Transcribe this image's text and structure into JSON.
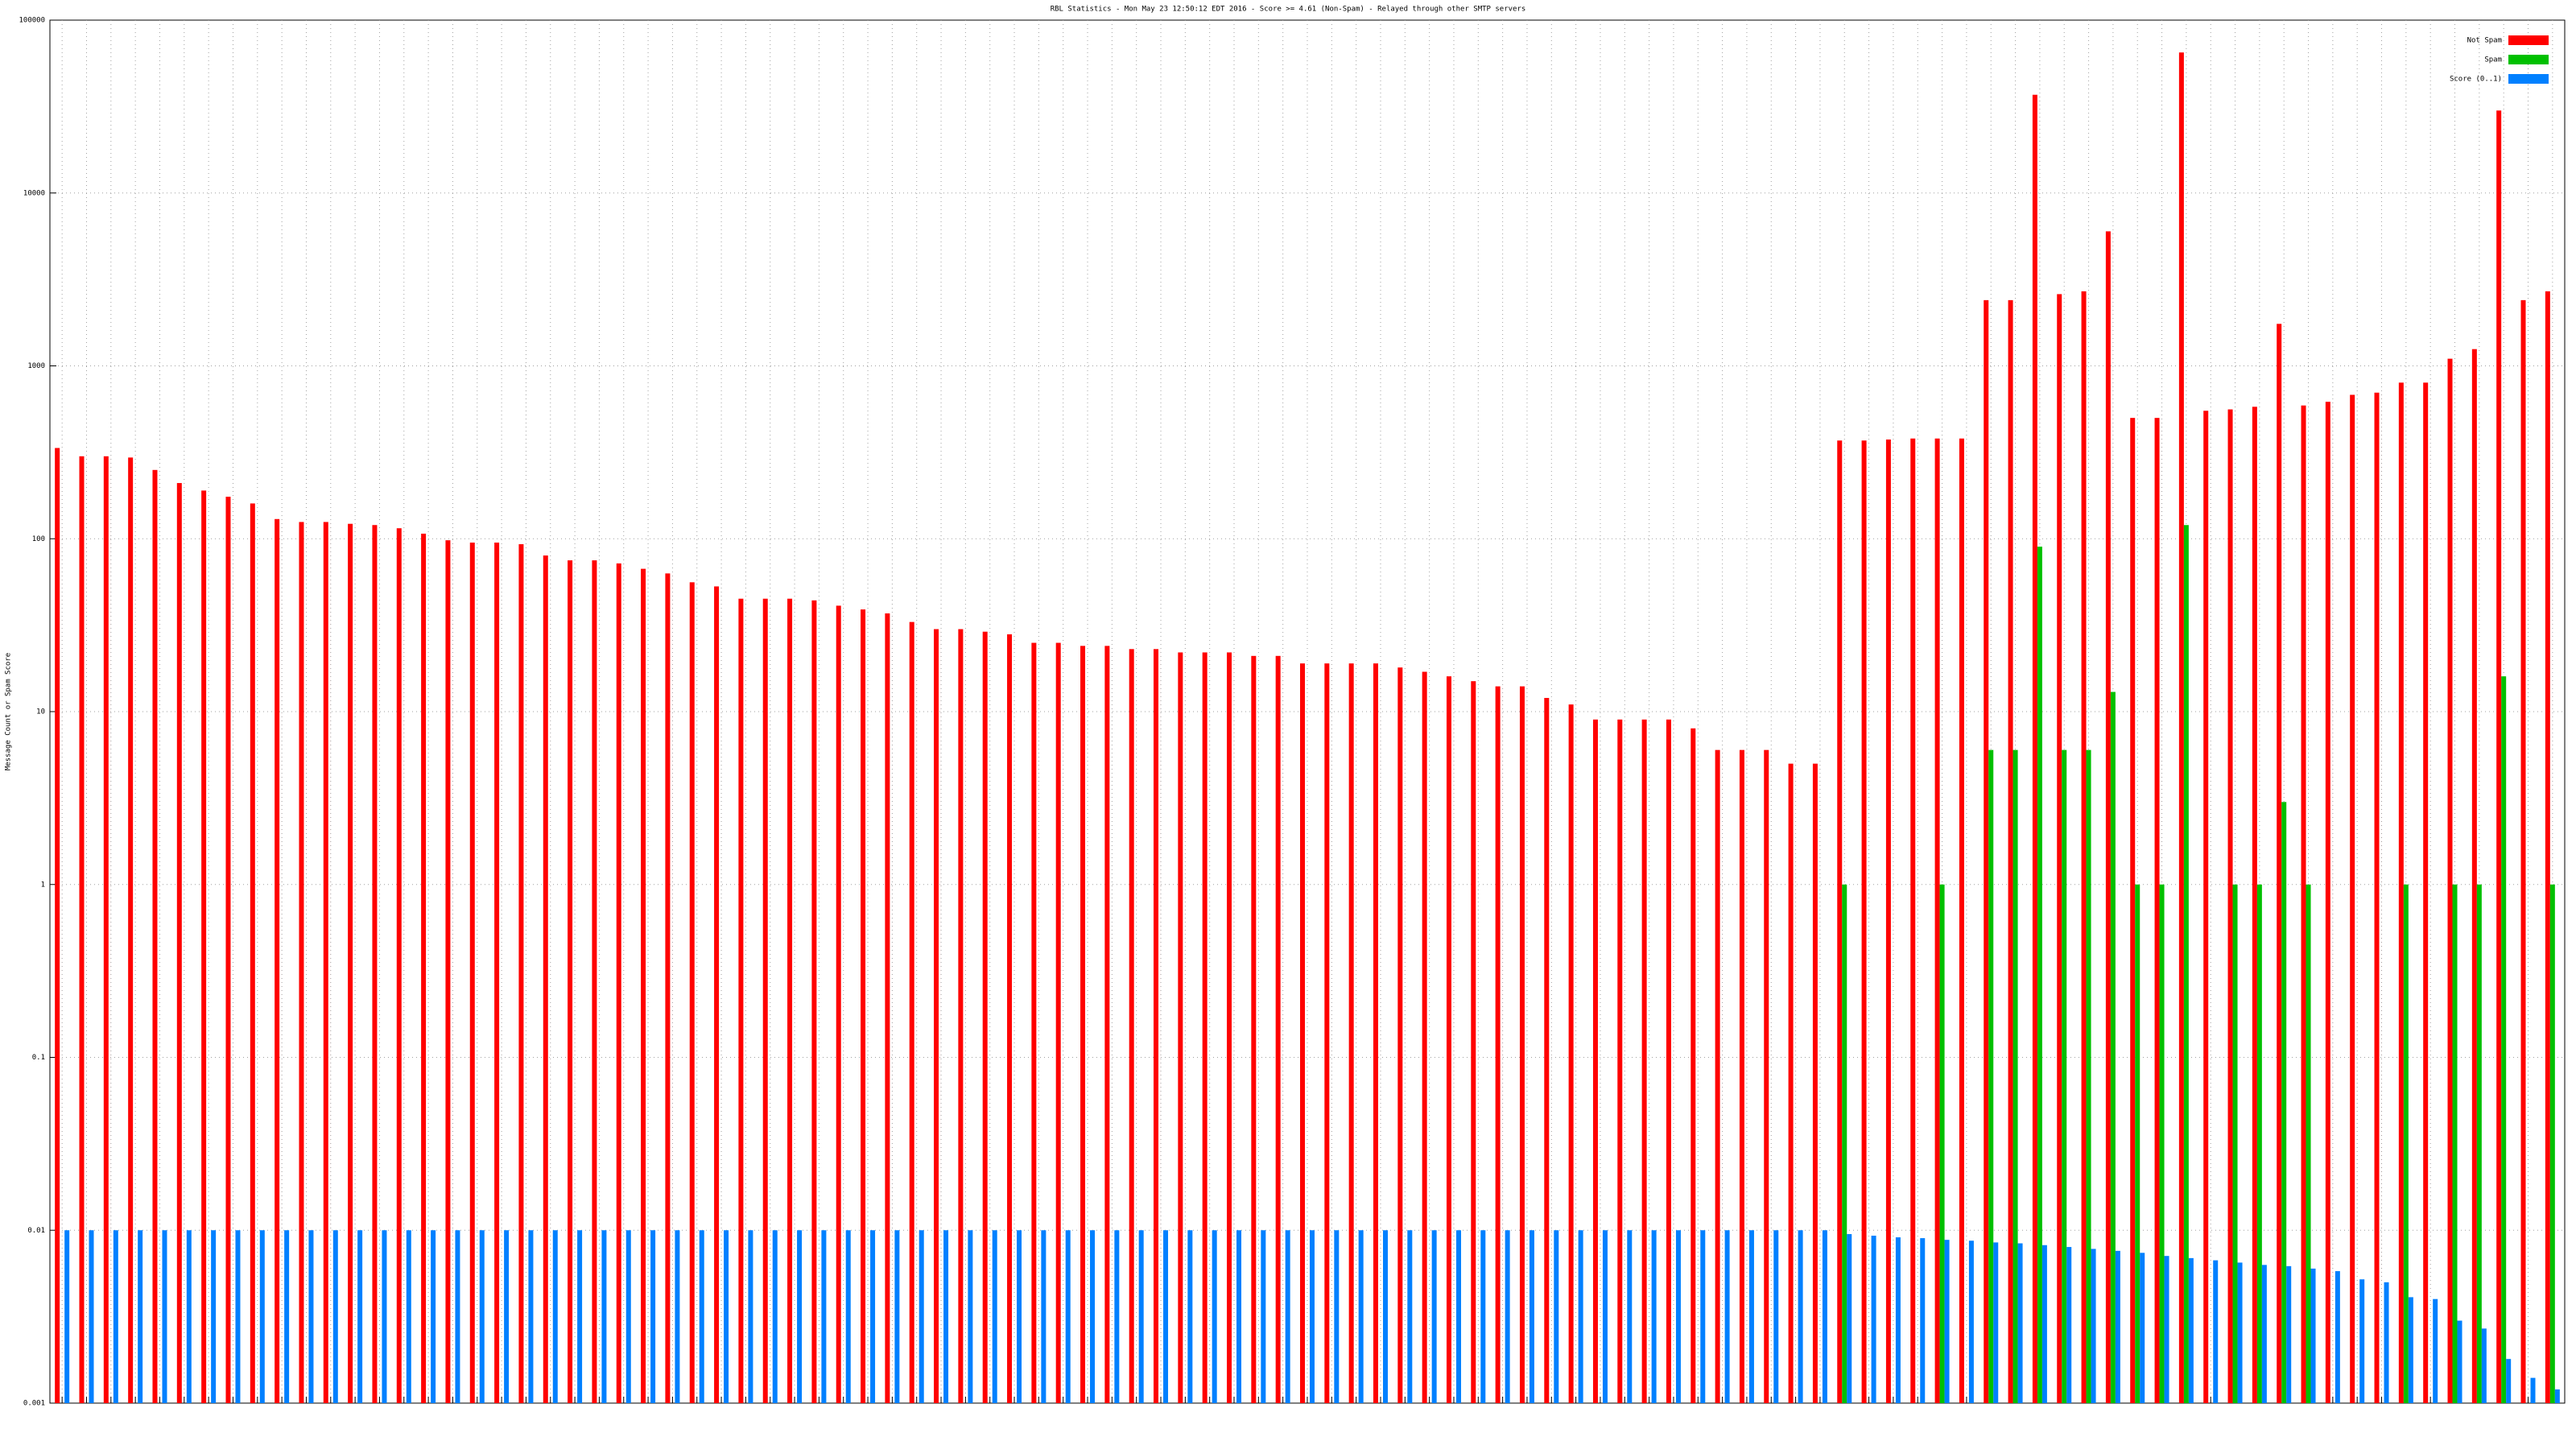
{
  "chart_data": {
    "type": "bar",
    "title": "RBL Statistics - Mon May 23 12:50:12 EDT 2016 - Score >= 4.61 (Non-Spam) - Relayed through other SMTP servers",
    "ylabel": "Message Count or Spam Score",
    "ylog": true,
    "ylim": [
      0.001,
      100000
    ],
    "yticks": [
      0.001,
      0.01,
      0.1,
      1,
      10,
      100,
      1000,
      10000,
      100000
    ],
    "grid": true,
    "legend": "top-right",
    "categories": [
      null,
      null,
      null,
      null,
      null,
      null,
      null,
      null,
      null,
      null,
      null,
      null,
      null,
      null,
      null,
      null,
      null,
      null,
      null,
      null,
      null,
      null,
      null,
      null,
      null,
      null,
      null,
      null,
      null,
      null,
      null,
      null,
      null,
      null,
      null,
      null,
      null,
      null,
      null,
      null,
      null,
      null,
      null,
      null,
      null,
      null,
      null,
      null,
      null,
      null,
      null,
      null,
      null,
      null,
      null,
      null,
      null,
      null,
      null,
      null,
      null,
      null,
      null,
      null,
      null,
      null,
      null,
      null,
      null,
      null,
      null,
      null,
      null,
      null,
      null,
      null,
      null,
      null,
      null,
      null,
      null,
      null,
      null,
      null,
      null,
      null,
      null,
      null,
      null,
      null,
      null,
      null,
      null,
      null,
      null,
      null,
      null,
      null,
      null,
      null,
      null,
      null,
      null
    ],
    "series": [
      {
        "name": "Not Spam",
        "color": "#ff0000",
        "values": [
          335,
          300,
          300,
          295,
          250,
          210,
          190,
          175,
          160,
          130,
          125,
          125,
          122,
          120,
          115,
          107,
          98,
          95,
          95,
          93,
          80,
          75,
          75,
          72,
          67,
          63,
          56,
          53,
          45,
          45,
          45,
          44,
          41,
          39,
          37,
          33,
          30,
          30,
          29,
          28,
          25,
          25,
          24,
          24,
          23,
          23,
          22,
          22,
          22,
          21,
          21,
          19,
          19,
          19,
          19,
          18,
          17,
          16,
          15,
          14,
          14,
          12,
          11,
          9,
          9,
          9,
          9,
          8,
          6,
          6,
          6,
          5,
          5,
          370,
          370,
          375,
          380,
          380,
          380,
          2400,
          2400,
          37000,
          2600,
          2700,
          6000,
          500,
          500,
          65000,
          550,
          560,
          580,
          1750,
          590,
          620,
          680,
          700,
          800,
          800,
          1100,
          1250,
          30000,
          2400,
          2700
        ]
      },
      {
        "name": "Spam",
        "color": "#00c000",
        "values": [
          null,
          null,
          null,
          null,
          null,
          null,
          null,
          null,
          null,
          null,
          null,
          null,
          null,
          null,
          null,
          null,
          null,
          null,
          null,
          null,
          null,
          null,
          null,
          null,
          null,
          null,
          null,
          null,
          null,
          null,
          null,
          null,
          null,
          null,
          null,
          null,
          null,
          null,
          null,
          null,
          null,
          null,
          null,
          null,
          null,
          null,
          null,
          null,
          null,
          null,
          null,
          null,
          null,
          null,
          null,
          null,
          null,
          null,
          null,
          null,
          null,
          null,
          null,
          null,
          null,
          null,
          null,
          null,
          null,
          null,
          null,
          null,
          null,
          1,
          null,
          null,
          null,
          1,
          null,
          6,
          6,
          90,
          6,
          6,
          13,
          1,
          1,
          120,
          null,
          1,
          1,
          3,
          1,
          null,
          null,
          null,
          1,
          null,
          1,
          1,
          16,
          null,
          1
        ]
      },
      {
        "name": "Score (0..1)",
        "color": "#0080ff",
        "values": [
          0.01,
          0.01,
          0.01,
          0.01,
          0.01,
          0.01,
          0.01,
          0.01,
          0.01,
          0.01,
          0.01,
          0.01,
          0.01,
          0.01,
          0.01,
          0.01,
          0.01,
          0.01,
          0.01,
          0.01,
          0.01,
          0.01,
          0.01,
          0.01,
          0.01,
          0.01,
          0.01,
          0.01,
          0.01,
          0.01,
          0.01,
          0.01,
          0.01,
          0.01,
          0.01,
          0.01,
          0.01,
          0.01,
          0.01,
          0.01,
          0.01,
          0.01,
          0.01,
          0.01,
          0.01,
          0.01,
          0.01,
          0.01,
          0.01,
          0.01,
          0.01,
          0.01,
          0.01,
          0.01,
          0.01,
          0.01,
          0.01,
          0.01,
          0.01,
          0.01,
          0.01,
          0.01,
          0.01,
          0.01,
          0.01,
          0.01,
          0.01,
          0.01,
          0.01,
          0.01,
          0.01,
          0.01,
          0.01,
          0.0095,
          0.0093,
          0.0091,
          0.009,
          0.0088,
          0.0087,
          0.0085,
          0.0084,
          0.0082,
          0.008,
          0.0078,
          0.0076,
          0.0074,
          0.0071,
          0.0069,
          0.0067,
          0.0065,
          0.0063,
          0.0062,
          0.006,
          0.0058,
          0.0052,
          0.005,
          0.0041,
          0.004,
          0.003,
          0.0027,
          0.0018,
          0.0014,
          0.0012
        ]
      }
    ]
  }
}
